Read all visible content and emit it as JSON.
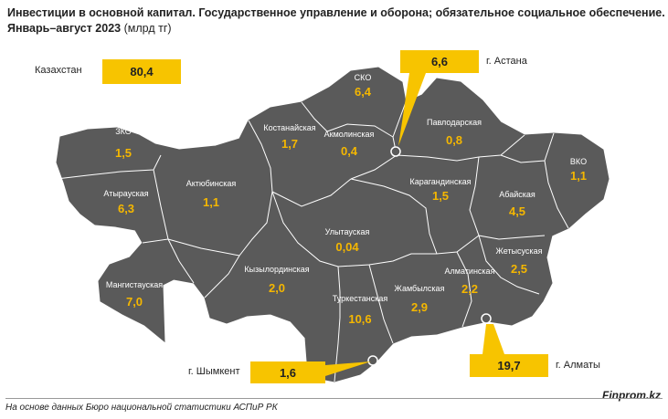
{
  "title": {
    "line1": "Инвестиции в основной капитал. Государственное управление и оборона; обязательное социальное обеспечение.",
    "line2_bold": "Январь–август 2023",
    "line2_unit": "(млрд тг)"
  },
  "total": {
    "label": "Казахстан",
    "value": "80,4"
  },
  "cities": {
    "astana": {
      "label": "г. Астана",
      "value": "6,6"
    },
    "almaty": {
      "label": "г. Алматы",
      "value": "19,7"
    },
    "shymkent": {
      "label": "г. Шымкент",
      "value": "1,6"
    }
  },
  "regions": [
    {
      "name": "ЗКО",
      "value": "1,5"
    },
    {
      "name": "Атырауская",
      "value": "6,3"
    },
    {
      "name": "Актюбинская",
      "value": "1,1"
    },
    {
      "name": "Костанайская",
      "value": "1,7"
    },
    {
      "name": "СКО",
      "value": "6,4"
    },
    {
      "name": "Акмолинская",
      "value": "0,4"
    },
    {
      "name": "Павлодарская",
      "value": "0,8"
    },
    {
      "name": "ВКО",
      "value": "1,1"
    },
    {
      "name": "Карагандинская",
      "value": "1,5"
    },
    {
      "name": "Абайская",
      "value": "4,5"
    },
    {
      "name": "Улытауская",
      "value": "0,04"
    },
    {
      "name": "Мангистауская",
      "value": "7,0"
    },
    {
      "name": "Кызылординская",
      "value": "2,0"
    },
    {
      "name": "Туркестанская",
      "value": "10,6"
    },
    {
      "name": "Жамбылская",
      "value": "2,9"
    },
    {
      "name": "Алматинская",
      "value": "2,2"
    },
    {
      "name": "Жетысуская",
      "value": "2,5"
    }
  ],
  "footer": {
    "source": "На основе данных Бюро национальной статистики АСПиР РК",
    "brand": "Finprom.kz"
  },
  "colors": {
    "map_fill": "#5a5a5a",
    "border": "#ffffff",
    "value": "#f5b700",
    "callout": "#f7c400"
  }
}
